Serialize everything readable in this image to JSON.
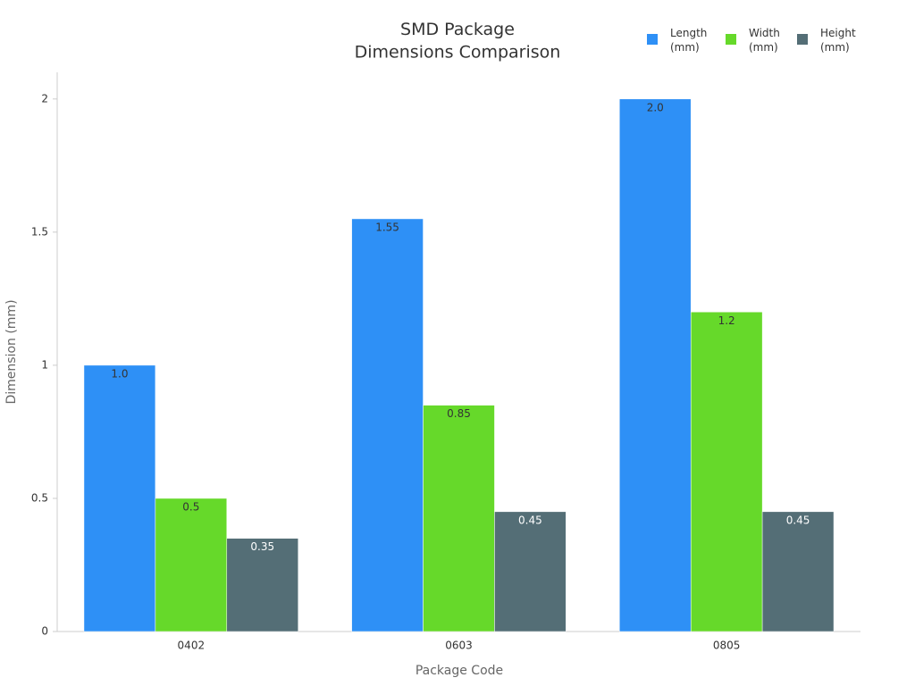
{
  "chart_data": {
    "type": "bar",
    "title": "SMD Package\nDimensions Comparison",
    "x_label": "Package Code",
    "y_label": "Dimension (mm)",
    "categories": [
      "0402",
      "0603",
      "0805"
    ],
    "series": [
      {
        "name": "Length\n(mm)",
        "color": "#2e90f6",
        "values": [
          1.0,
          1.55,
          2.0
        ],
        "value_labels": [
          "1.0",
          "1.55",
          "2.0"
        ]
      },
      {
        "name": "Width\n(mm)",
        "color": "#66d92a",
        "values": [
          0.5,
          0.85,
          1.2
        ],
        "value_labels": [
          "0.5",
          "0.85",
          "1.2"
        ]
      },
      {
        "name": "Height\n(mm)",
        "color": "#546e76",
        "values": [
          0.35,
          0.45,
          0.45
        ],
        "value_labels": [
          "0.35",
          "0.45",
          "0.45"
        ]
      }
    ],
    "ylim": [
      0,
      2.1
    ],
    "yticks": [
      0,
      0.5,
      1,
      1.5,
      2
    ],
    "grid": false,
    "legend": "top-right"
  }
}
